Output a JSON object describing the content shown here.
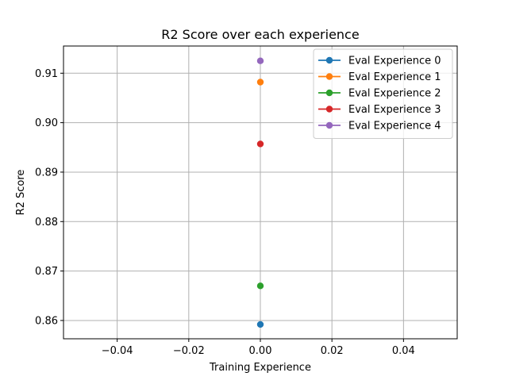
{
  "chart_data": {
    "type": "line",
    "title": "R2 Score over each experience",
    "xlabel": "Training Experience",
    "ylabel": "R2 Score",
    "xlim": [
      -0.055,
      0.055
    ],
    "ylim": [
      0.8563,
      0.9155
    ],
    "xticks": [
      -0.04,
      -0.02,
      0.0,
      0.02,
      0.04
    ],
    "xtick_labels": [
      "−0.04",
      "−0.02",
      "0.00",
      "0.02",
      "0.04"
    ],
    "yticks": [
      0.86,
      0.87,
      0.88,
      0.89,
      0.9,
      0.91
    ],
    "ytick_labels": [
      "0.86",
      "0.87",
      "0.88",
      "0.89",
      "0.90",
      "0.91"
    ],
    "grid": true,
    "legend_position": "top-right",
    "series": [
      {
        "name": "Eval Experience 0",
        "color": "#1f77b4",
        "x": [
          0
        ],
        "y": [
          0.8592
        ]
      },
      {
        "name": "Eval Experience 1",
        "color": "#ff7f0e",
        "x": [
          0
        ],
        "y": [
          0.9082
        ]
      },
      {
        "name": "Eval Experience 2",
        "color": "#2ca02c",
        "x": [
          0
        ],
        "y": [
          0.867
        ]
      },
      {
        "name": "Eval Experience 3",
        "color": "#d62728",
        "x": [
          0
        ],
        "y": [
          0.8957
        ]
      },
      {
        "name": "Eval Experience 4",
        "color": "#9467bd",
        "x": [
          0
        ],
        "y": [
          0.9125
        ]
      }
    ]
  }
}
